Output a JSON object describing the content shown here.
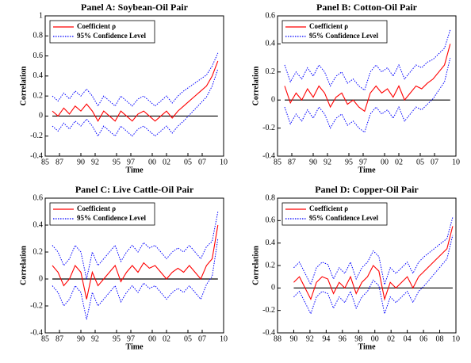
{
  "chart_data": [
    {
      "type": "line",
      "title": "Panel A: Soybean-Oil Pair",
      "xlabel": "Time",
      "ylabel": "Correlation",
      "legend": "upper left",
      "x": [
        1986,
        1986.8,
        1987.6,
        1988.4,
        1989.2,
        1990,
        1990.8,
        1991.6,
        1992.4,
        1993.2,
        1994,
        1994.8,
        1995.6,
        1996.4,
        1997.2,
        1998,
        1998.8,
        1999.6,
        2000.4,
        2001.2,
        2002,
        2002.8,
        2003.6,
        2004.4,
        2005.2,
        2006,
        2006.8,
        2007.6,
        2008.4,
        2009.2
      ],
      "series": [
        {
          "name": "Coefficient ρ",
          "color": "#ff0000",
          "line_style": "solid",
          "values": [
            0.05,
            0.0,
            0.08,
            0.02,
            0.1,
            0.05,
            0.12,
            0.05,
            -0.05,
            0.05,
            0.0,
            -0.05,
            0.05,
            0.0,
            -0.05,
            0.02,
            0.05,
            0.0,
            -0.05,
            0.0,
            0.05,
            -0.02,
            0.05,
            0.1,
            0.15,
            0.2,
            0.25,
            0.3,
            0.4,
            0.55
          ]
        },
        {
          "name": "95% Confidence Level",
          "color": "#0000ff",
          "line_style": "dotted",
          "upper": [
            0.2,
            0.15,
            0.23,
            0.17,
            0.25,
            0.2,
            0.27,
            0.2,
            0.1,
            0.2,
            0.15,
            0.1,
            0.2,
            0.15,
            0.1,
            0.17,
            0.2,
            0.15,
            0.1,
            0.15,
            0.2,
            0.13,
            0.2,
            0.25,
            0.29,
            0.33,
            0.37,
            0.41,
            0.5,
            0.63
          ],
          "lower": [
            -0.1,
            -0.15,
            -0.07,
            -0.13,
            -0.05,
            -0.1,
            -0.03,
            -0.1,
            -0.2,
            -0.1,
            -0.15,
            -0.2,
            -0.1,
            -0.15,
            -0.2,
            -0.13,
            -0.1,
            -0.15,
            -0.2,
            -0.15,
            -0.1,
            -0.17,
            -0.1,
            -0.05,
            0.01,
            0.07,
            0.13,
            0.19,
            0.3,
            0.47
          ]
        }
      ],
      "xlim": [
        1985,
        2010
      ],
      "ylim": [
        -0.4,
        1
      ],
      "xticks": [
        {
          "value": 1985,
          "label": "85"
        },
        {
          "value": 1987,
          "label": "87"
        },
        {
          "value": 1990,
          "label": "90"
        },
        {
          "value": 1992,
          "label": "92"
        },
        {
          "value": 1995,
          "label": "95"
        },
        {
          "value": 1997,
          "label": "97"
        },
        {
          "value": 2000,
          "label": "00"
        },
        {
          "value": 2002,
          "label": "02"
        },
        {
          "value": 2005,
          "label": "05"
        },
        {
          "value": 2007,
          "label": "07"
        },
        {
          "value": 2010,
          "label": "10"
        }
      ],
      "yticks": [
        -0.4,
        -0.2,
        0,
        0.2,
        0.4,
        0.6,
        0.8,
        1
      ]
    },
    {
      "type": "line",
      "title": "Panel B: Cotton-Oil Pair",
      "xlabel": "Time",
      "ylabel": "Correlation",
      "legend": "upper left",
      "x": [
        1986,
        1986.8,
        1987.6,
        1988.4,
        1989.2,
        1990,
        1990.8,
        1991.6,
        1992.4,
        1993.2,
        1994,
        1994.8,
        1995.6,
        1996.4,
        1997.2,
        1998,
        1998.8,
        1999.6,
        2000.4,
        2001.2,
        2002,
        2002.8,
        2003.6,
        2004.4,
        2005.2,
        2006,
        2006.8,
        2007.6,
        2008.4,
        2009.2
      ],
      "series": [
        {
          "name": "Coefficient ρ",
          "color": "#ff0000",
          "line_style": "solid",
          "values": [
            0.1,
            -0.02,
            0.05,
            0.0,
            0.08,
            0.02,
            0.1,
            0.05,
            -0.05,
            0.02,
            0.05,
            -0.03,
            0.0,
            -0.05,
            -0.08,
            0.05,
            0.1,
            0.05,
            0.08,
            0.02,
            0.1,
            0.0,
            0.05,
            0.1,
            0.08,
            0.12,
            0.15,
            0.2,
            0.25,
            0.4
          ]
        },
        {
          "name": "95% Confidence Level",
          "color": "#0000ff",
          "line_style": "dotted",
          "upper": [
            0.25,
            0.13,
            0.2,
            0.15,
            0.23,
            0.17,
            0.25,
            0.2,
            0.1,
            0.17,
            0.2,
            0.12,
            0.15,
            0.1,
            0.07,
            0.2,
            0.25,
            0.2,
            0.23,
            0.17,
            0.25,
            0.15,
            0.2,
            0.25,
            0.23,
            0.27,
            0.29,
            0.33,
            0.37,
            0.5
          ],
          "lower": [
            -0.05,
            -0.17,
            -0.1,
            -0.15,
            -0.07,
            -0.13,
            -0.05,
            -0.1,
            -0.2,
            -0.13,
            -0.1,
            -0.18,
            -0.15,
            -0.2,
            -0.23,
            -0.1,
            -0.05,
            -0.1,
            -0.07,
            -0.13,
            -0.05,
            -0.15,
            -0.1,
            -0.05,
            -0.07,
            -0.03,
            0.01,
            0.07,
            0.13,
            0.3
          ]
        }
      ],
      "xlim": [
        1985,
        2010
      ],
      "ylim": [
        -0.4,
        0.6
      ],
      "xticks": [
        {
          "value": 1985,
          "label": "85"
        },
        {
          "value": 1987,
          "label": "87"
        },
        {
          "value": 1990,
          "label": "90"
        },
        {
          "value": 1992,
          "label": "92"
        },
        {
          "value": 1995,
          "label": "95"
        },
        {
          "value": 1997,
          "label": "97"
        },
        {
          "value": 2000,
          "label": "00"
        },
        {
          "value": 2002,
          "label": "02"
        },
        {
          "value": 2005,
          "label": "05"
        },
        {
          "value": 2007,
          "label": "07"
        },
        {
          "value": 2010,
          "label": "10"
        }
      ],
      "yticks": [
        -0.4,
        -0.2,
        0,
        0.2,
        0.4,
        0.6
      ]
    },
    {
      "type": "line",
      "title": "Panel C: Live Cattle-Oil Pair",
      "xlabel": "Time",
      "ylabel": "Correlation",
      "legend": "upper left",
      "x": [
        1986,
        1986.8,
        1987.6,
        1988.4,
        1989.2,
        1990,
        1990.8,
        1991.6,
        1992.4,
        1993.2,
        1994,
        1994.8,
        1995.6,
        1996.4,
        1997.2,
        1998,
        1998.8,
        1999.6,
        2000.4,
        2001.2,
        2002,
        2002.8,
        2003.6,
        2004.4,
        2005.2,
        2006,
        2006.8,
        2007.6,
        2008.4,
        2009.2
      ],
      "series": [
        {
          "name": "Coefficient ρ",
          "color": "#ff0000",
          "line_style": "solid",
          "values": [
            0.1,
            0.05,
            -0.05,
            0.0,
            0.1,
            0.05,
            -0.15,
            0.05,
            -0.05,
            0.0,
            0.05,
            0.1,
            -0.02,
            0.05,
            0.1,
            0.05,
            0.12,
            0.08,
            0.1,
            0.05,
            0.0,
            0.05,
            0.08,
            0.05,
            0.1,
            0.05,
            0.0,
            0.1,
            0.15,
            0.4
          ]
        },
        {
          "name": "95% Confidence Level",
          "color": "#0000ff",
          "line_style": "dotted",
          "upper": [
            0.25,
            0.2,
            0.1,
            0.15,
            0.25,
            0.2,
            0.0,
            0.2,
            0.1,
            0.15,
            0.2,
            0.25,
            0.13,
            0.2,
            0.25,
            0.2,
            0.27,
            0.23,
            0.25,
            0.2,
            0.15,
            0.2,
            0.23,
            0.2,
            0.25,
            0.2,
            0.15,
            0.24,
            0.28,
            0.5
          ],
          "lower": [
            -0.05,
            -0.1,
            -0.2,
            -0.15,
            -0.05,
            -0.1,
            -0.3,
            -0.1,
            -0.2,
            -0.15,
            -0.1,
            -0.05,
            -0.17,
            -0.1,
            -0.05,
            -0.1,
            -0.03,
            -0.07,
            -0.05,
            -0.1,
            -0.15,
            -0.1,
            -0.07,
            -0.1,
            -0.05,
            -0.1,
            -0.15,
            -0.04,
            0.02,
            0.3
          ]
        }
      ],
      "xlim": [
        1985,
        2010
      ],
      "ylim": [
        -0.4,
        0.6
      ],
      "xticks": [
        {
          "value": 1985,
          "label": "85"
        },
        {
          "value": 1987,
          "label": "87"
        },
        {
          "value": 1990,
          "label": "90"
        },
        {
          "value": 1992,
          "label": "92"
        },
        {
          "value": 1995,
          "label": "95"
        },
        {
          "value": 1997,
          "label": "97"
        },
        {
          "value": 2000,
          "label": "00"
        },
        {
          "value": 2002,
          "label": "02"
        },
        {
          "value": 2005,
          "label": "05"
        },
        {
          "value": 2007,
          "label": "07"
        },
        {
          "value": 2010,
          "label": "10"
        }
      ],
      "yticks": [
        -0.4,
        -0.2,
        0,
        0.2,
        0.4,
        0.6
      ]
    },
    {
      "type": "line",
      "title": "Panel D: Copper-Oil Pair",
      "xlabel": "Time",
      "ylabel": "Correlation",
      "legend": "upper left",
      "x": [
        1990,
        1990.7,
        1991.4,
        1992.1,
        1992.8,
        1993.5,
        1994.2,
        1994.9,
        1995.6,
        1996.3,
        1997,
        1997.7,
        1998.4,
        1999.1,
        1999.8,
        2000.5,
        2001.2,
        2001.9,
        2002.6,
        2003.3,
        2004,
        2004.7,
        2005.4,
        2006.1,
        2006.8,
        2007.5,
        2008.2,
        2008.9,
        2009.6
      ],
      "series": [
        {
          "name": "Coefficient ρ",
          "color": "#ff0000",
          "line_style": "solid",
          "values": [
            0.05,
            0.1,
            0.0,
            -0.1,
            0.05,
            0.1,
            0.08,
            -0.05,
            0.05,
            0.0,
            0.1,
            -0.05,
            0.05,
            0.1,
            0.2,
            0.15,
            -0.1,
            0.05,
            0.0,
            0.05,
            0.1,
            0.0,
            0.1,
            0.15,
            0.2,
            0.25,
            0.3,
            0.35,
            0.55
          ]
        },
        {
          "name": "95% Confidence Level",
          "color": "#0000ff",
          "line_style": "dotted",
          "upper": [
            0.18,
            0.23,
            0.13,
            0.03,
            0.18,
            0.23,
            0.21,
            0.08,
            0.18,
            0.13,
            0.23,
            0.08,
            0.18,
            0.23,
            0.33,
            0.28,
            0.03,
            0.18,
            0.13,
            0.18,
            0.23,
            0.13,
            0.23,
            0.28,
            0.32,
            0.36,
            0.4,
            0.44,
            0.63
          ],
          "lower": [
            -0.08,
            -0.03,
            -0.13,
            -0.23,
            -0.08,
            -0.03,
            -0.05,
            -0.18,
            -0.08,
            -0.13,
            -0.03,
            -0.18,
            -0.08,
            -0.03,
            0.07,
            0.02,
            -0.23,
            -0.08,
            -0.13,
            -0.08,
            -0.03,
            -0.13,
            -0.03,
            0.02,
            0.08,
            0.14,
            0.2,
            0.26,
            0.47
          ]
        }
      ],
      "xlim": [
        1988,
        2010
      ],
      "ylim": [
        -0.4,
        0.8
      ],
      "xticks": [
        {
          "value": 1988,
          "label": "88"
        },
        {
          "value": 1990,
          "label": "90"
        },
        {
          "value": 1992,
          "label": "92"
        },
        {
          "value": 1994,
          "label": "94"
        },
        {
          "value": 1996,
          "label": "96"
        },
        {
          "value": 1998,
          "label": "98"
        },
        {
          "value": 2000,
          "label": "00"
        },
        {
          "value": 2002,
          "label": "02"
        },
        {
          "value": 2004,
          "label": "04"
        },
        {
          "value": 2006,
          "label": "06"
        },
        {
          "value": 2008,
          "label": "08"
        },
        {
          "value": 2010,
          "label": "10"
        }
      ],
      "yticks": [
        -0.4,
        -0.2,
        0,
        0.2,
        0.4,
        0.6,
        0.8
      ]
    }
  ]
}
